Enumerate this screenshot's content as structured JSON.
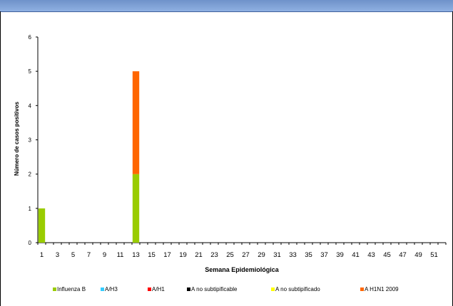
{
  "chart_data": {
    "type": "bar",
    "stacked": true,
    "title": "",
    "xlabel": "Semana Epidemiológica",
    "ylabel": "Número de casos positivos",
    "ylim": [
      0,
      6
    ],
    "yticks": [
      0,
      1,
      2,
      3,
      4,
      5,
      6
    ],
    "categories": [
      1,
      2,
      3,
      4,
      5,
      6,
      7,
      8,
      9,
      10,
      11,
      12,
      13,
      14,
      15,
      16,
      17,
      18,
      19,
      20,
      21,
      22,
      23,
      24,
      25,
      26,
      27,
      28,
      29,
      30,
      31,
      32,
      33,
      34,
      35,
      36,
      37,
      38,
      39,
      40,
      41,
      42,
      43,
      44,
      45,
      46,
      47,
      48,
      49,
      50,
      51,
      52
    ],
    "xtick_labels": [
      1,
      3,
      5,
      7,
      9,
      11,
      13,
      15,
      17,
      19,
      21,
      23,
      25,
      27,
      29,
      31,
      33,
      35,
      37,
      39,
      41,
      43,
      45,
      47,
      49,
      51
    ],
    "series": [
      {
        "name": "Influenza  B",
        "color": "#99cc00",
        "values": [
          1,
          0,
          0,
          0,
          0,
          0,
          0,
          0,
          0,
          0,
          0,
          0,
          2,
          0,
          0,
          0,
          0,
          0,
          0,
          0,
          0,
          0,
          0,
          0,
          0,
          0,
          0,
          0,
          0,
          0,
          0,
          0,
          0,
          0,
          0,
          0,
          0,
          0,
          0,
          0,
          0,
          0,
          0,
          0,
          0,
          0,
          0,
          0,
          0,
          0,
          0,
          0
        ]
      },
      {
        "name": "A/H3",
        "color": "#33ccff",
        "values": [
          0,
          0,
          0,
          0,
          0,
          0,
          0,
          0,
          0,
          0,
          0,
          0,
          0,
          0,
          0,
          0,
          0,
          0,
          0,
          0,
          0,
          0,
          0,
          0,
          0,
          0,
          0,
          0,
          0,
          0,
          0,
          0,
          0,
          0,
          0,
          0,
          0,
          0,
          0,
          0,
          0,
          0,
          0,
          0,
          0,
          0,
          0,
          0,
          0,
          0,
          0,
          0
        ]
      },
      {
        "name": "A/H1",
        "color": "#ff0000",
        "values": [
          0,
          0,
          0,
          0,
          0,
          0,
          0,
          0,
          0,
          0,
          0,
          0,
          0,
          0,
          0,
          0,
          0,
          0,
          0,
          0,
          0,
          0,
          0,
          0,
          0,
          0,
          0,
          0,
          0,
          0,
          0,
          0,
          0,
          0,
          0,
          0,
          0,
          0,
          0,
          0,
          0,
          0,
          0,
          0,
          0,
          0,
          0,
          0,
          0,
          0,
          0,
          0
        ]
      },
      {
        "name": "A no subtipificable",
        "color": "#000000",
        "values": [
          0,
          0,
          0,
          0,
          0,
          0,
          0,
          0,
          0,
          0,
          0,
          0,
          0,
          0,
          0,
          0,
          0,
          0,
          0,
          0,
          0,
          0,
          0,
          0,
          0,
          0,
          0,
          0,
          0,
          0,
          0,
          0,
          0,
          0,
          0,
          0,
          0,
          0,
          0,
          0,
          0,
          0,
          0,
          0,
          0,
          0,
          0,
          0,
          0,
          0,
          0,
          0
        ]
      },
      {
        "name": "A no subtipificado",
        "color": "#ffff00",
        "values": [
          0,
          0,
          0,
          0,
          0,
          0,
          0,
          0,
          0,
          0,
          0,
          0,
          0,
          0,
          0,
          0,
          0,
          0,
          0,
          0,
          0,
          0,
          0,
          0,
          0,
          0,
          0,
          0,
          0,
          0,
          0,
          0,
          0,
          0,
          0,
          0,
          0,
          0,
          0,
          0,
          0,
          0,
          0,
          0,
          0,
          0,
          0,
          0,
          0,
          0,
          0,
          0
        ]
      },
      {
        "name": "A H1N1 2009",
        "color": "#ff6600",
        "values": [
          0,
          0,
          0,
          0,
          0,
          0,
          0,
          0,
          0,
          0,
          0,
          0,
          3,
          0,
          0,
          0,
          0,
          0,
          0,
          0,
          0,
          0,
          0,
          0,
          0,
          0,
          0,
          0,
          0,
          0,
          0,
          0,
          0,
          0,
          0,
          0,
          0,
          0,
          0,
          0,
          0,
          0,
          0,
          0,
          0,
          0,
          0,
          0,
          0,
          0,
          0,
          0
        ]
      }
    ],
    "grid": false,
    "legend_position": "bottom"
  }
}
